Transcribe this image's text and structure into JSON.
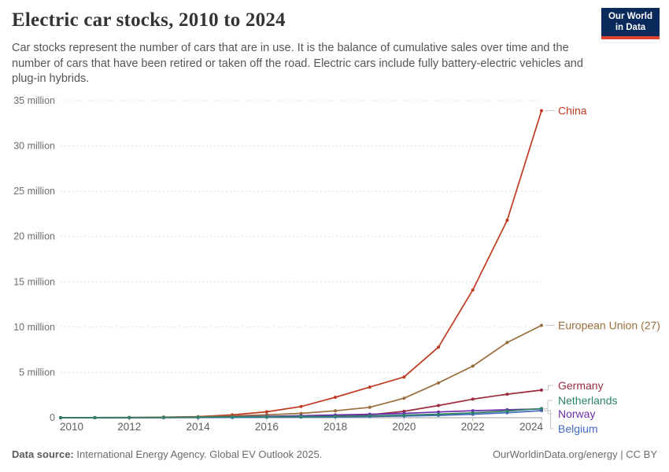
{
  "page": {
    "title": "Electric car stocks, 2010 to 2024",
    "subtitle": "Car stocks represent the number of cars that are in use. It is the balance of cumulative sales over time and the number of cars that have been retired or taken off the road. Electric cars include fully battery-electric vehicles and plug-in hybrids.",
    "logo": {
      "line1": "Our World",
      "line2": "in Data",
      "bg_color": "#0A2A5C",
      "stripe_color": "#E0432F"
    },
    "footer": {
      "source_label": "Data source:",
      "source_text": " International Energy Agency. Global EV Outlook 2025.",
      "credit": "OurWorldinData.org/energy | CC BY"
    }
  },
  "chart_data": {
    "type": "line",
    "title": "Electric car stocks, 2010 to 2024",
    "x": [
      2010,
      2011,
      2012,
      2013,
      2014,
      2015,
      2016,
      2017,
      2018,
      2019,
      2020,
      2021,
      2022,
      2023,
      2024
    ],
    "x_tick_labels": [
      "2010",
      "2012",
      "2014",
      "2016",
      "2018",
      "2020",
      "2022",
      "2024"
    ],
    "y_ticks": [
      0,
      5,
      10,
      15,
      20,
      25,
      30,
      35
    ],
    "y_tick_labels": [
      "0",
      "5 million",
      "10 million",
      "15 million",
      "20 million",
      "25 million",
      "30 million",
      "35 million"
    ],
    "ylim": [
      0,
      35
    ],
    "xlim": [
      2010,
      2024
    ],
    "grid": true,
    "legend_position": "end-of-line-labels",
    "series": [
      {
        "name": "China",
        "color": "#C03A21",
        "values": [
          0.01,
          0.02,
          0.03,
          0.06,
          0.12,
          0.31,
          0.65,
          1.23,
          2.26,
          3.38,
          4.5,
          7.8,
          14.1,
          21.8,
          33.9
        ]
      },
      {
        "name": "European Union (27)",
        "color": "#9A6D3C",
        "values": [
          0.0,
          0.01,
          0.03,
          0.06,
          0.1,
          0.2,
          0.32,
          0.48,
          0.76,
          1.15,
          2.15,
          3.85,
          5.7,
          8.3,
          10.2
        ]
      },
      {
        "name": "Germany",
        "color": "#9A2C3F",
        "values": [
          0.0,
          0.0,
          0.01,
          0.02,
          0.03,
          0.05,
          0.08,
          0.13,
          0.2,
          0.33,
          0.7,
          1.35,
          2.05,
          2.6,
          3.05
        ]
      },
      {
        "name": "Netherlands",
        "color": "#2C8465",
        "values": [
          0.0,
          0.01,
          0.02,
          0.03,
          0.05,
          0.09,
          0.11,
          0.13,
          0.15,
          0.21,
          0.29,
          0.39,
          0.53,
          0.74,
          1.02
        ]
      },
      {
        "name": "Norway",
        "color": "#6F2DAB",
        "values": [
          0.0,
          0.01,
          0.01,
          0.02,
          0.04,
          0.11,
          0.16,
          0.22,
          0.3,
          0.38,
          0.48,
          0.63,
          0.77,
          0.88,
          0.97
        ]
      },
      {
        "name": "Belgium",
        "color": "#4569BE",
        "values": [
          0.0,
          0.0,
          0.01,
          0.01,
          0.02,
          0.03,
          0.05,
          0.07,
          0.09,
          0.13,
          0.18,
          0.26,
          0.37,
          0.55,
          0.78
        ]
      }
    ]
  }
}
